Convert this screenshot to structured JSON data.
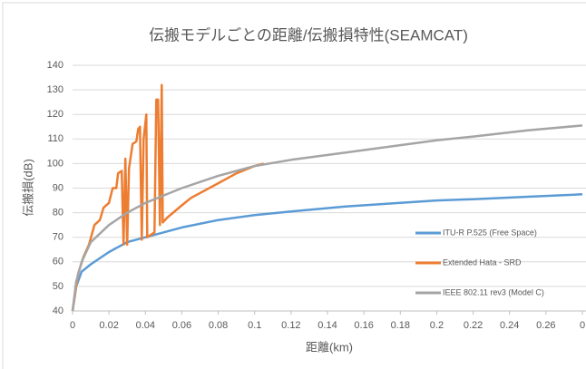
{
  "chart_data": {
    "type": "line",
    "title": "伝搬モデルごとの距離/伝搬損特性(SEAMCAT)",
    "x_label": "距離(km)",
    "y_label": "伝搬損(dB)",
    "xlim": [
      0,
      0.28
    ],
    "xticks": [
      0,
      0.02,
      0.04,
      0.06,
      0.08,
      0.1,
      0.12,
      0.14,
      0.16,
      0.18,
      0.2,
      0.22,
      0.24,
      0.26,
      {
        "value": 0.28,
        "label": "0"
      }
    ],
    "ylim": [
      40,
      140
    ],
    "yticks": [
      40,
      50,
      60,
      70,
      80,
      90,
      100,
      110,
      120,
      130,
      140
    ],
    "grid": true,
    "legend": "right",
    "series": [
      {
        "name": "ITU-R P.525 (Free Space)",
        "color": "#5b9bd5",
        "x": [
          0,
          0.002,
          0.005,
          0.01,
          0.02,
          0.03,
          0.04,
          0.05,
          0.06,
          0.08,
          0.1,
          0.12,
          0.15,
          0.18,
          0.2,
          0.22,
          0.25,
          0.28
        ],
        "values": [
          40,
          50,
          56,
          59,
          64,
          68,
          70,
          72,
          74,
          77,
          79,
          80.5,
          82.5,
          84,
          85,
          85.5,
          86.5,
          87.5
        ]
      },
      {
        "name": "Extended Hata - SRD",
        "color": "#ed7d31",
        "x": [
          0,
          0.003,
          0.006,
          0.009,
          0.012,
          0.015,
          0.017,
          0.02,
          0.022,
          0.024,
          0.025,
          0.027,
          0.028,
          0.029,
          0.03,
          0.031,
          0.033,
          0.035,
          0.036,
          0.037,
          0.038,
          0.039,
          0.0405,
          0.041,
          0.045,
          0.046,
          0.047,
          0.048,
          0.049,
          0.0495,
          0.052,
          0.06,
          0.065,
          0.08,
          0.09,
          0.1,
          0.105
        ],
        "values": [
          40,
          55,
          62,
          67,
          75,
          77,
          82,
          84,
          90,
          90,
          96,
          97,
          67,
          102,
          67,
          98,
          108,
          109,
          114,
          115,
          69,
          110,
          120,
          70,
          72,
          126,
          126,
          75,
          132,
          76,
          78,
          83,
          86,
          92,
          96,
          99,
          100
        ]
      },
      {
        "name": "IEEE 802.11 rev3 (Model C)",
        "color": "#a5a5a5",
        "x": [
          0,
          0.002,
          0.005,
          0.01,
          0.02,
          0.03,
          0.04,
          0.05,
          0.06,
          0.08,
          0.1,
          0.12,
          0.15,
          0.18,
          0.2,
          0.22,
          0.25,
          0.28
        ],
        "values": [
          40,
          52,
          60,
          68,
          75,
          80,
          84,
          87,
          90,
          95,
          99,
          101.5,
          104.5,
          107.5,
          109.5,
          111,
          113.5,
          115.5
        ]
      }
    ]
  }
}
